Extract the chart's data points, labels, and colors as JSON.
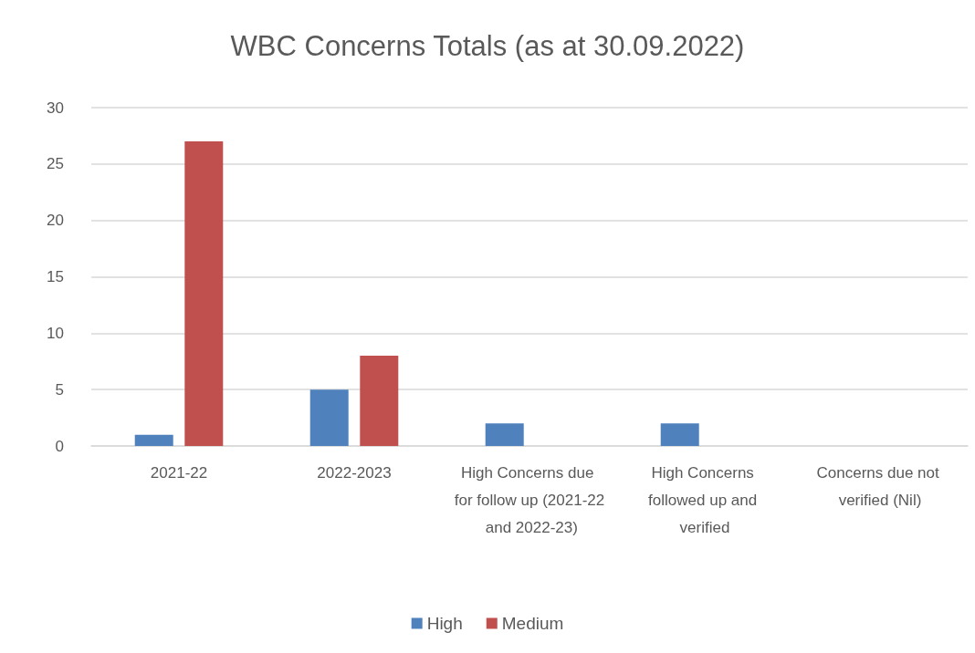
{
  "chart_data": {
    "type": "bar",
    "title": "WBC Concerns Totals (as at 30.09.2022)",
    "categories": [
      "2021-22",
      "2022-2023",
      "High Concerns due for follow up (2021-22 and 2022-23)",
      "High Concerns followed up and verified",
      "Concerns due not verified (Nil)"
    ],
    "series": [
      {
        "name": "High",
        "color": "#4f81bd",
        "values": [
          1,
          5,
          2,
          2,
          null
        ]
      },
      {
        "name": "Medium",
        "color": "#c0504d",
        "values": [
          27,
          8,
          null,
          null,
          null
        ]
      }
    ],
    "ylim": [
      0,
      30
    ],
    "yticks": [
      0,
      5,
      10,
      15,
      20,
      25,
      30
    ],
    "grid": "y",
    "legend": "bottom"
  }
}
